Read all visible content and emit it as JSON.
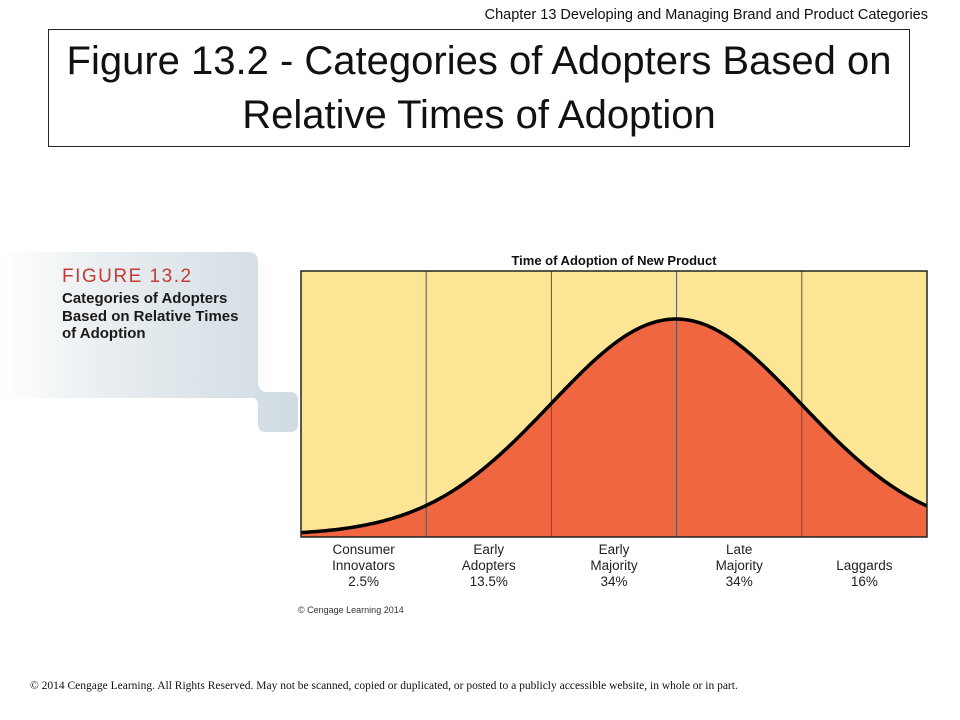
{
  "header": {
    "chapter": "Chapter 13 Developing and Managing Brand and Product Categories",
    "title": "Figure 13.2 - Categories of Adopters Based on Relative Times of Adoption"
  },
  "figure": {
    "label": "FIGURE 13.2",
    "caption": "Categories of Adopters Based on Relative Times of Adoption",
    "label_color": "#c53a33"
  },
  "chart_data": {
    "type": "area",
    "title": "Time of Adoption of New Product",
    "categories": [
      {
        "line1": "Consumer",
        "line2": "Innovators",
        "share": "2.5%"
      },
      {
        "line1": "Early",
        "line2": "Adopters",
        "share": "13.5%"
      },
      {
        "line1": "Early",
        "line2": "Majority",
        "share": "34%"
      },
      {
        "line1": "Late",
        "line2": "Majority",
        "share": "34%"
      },
      {
        "line1": "",
        "line2": "Laggards",
        "share": "16%"
      }
    ],
    "colors": {
      "background": "#fde596",
      "curve_fill": "#f06640",
      "curve_stroke": "#000000"
    },
    "credit": "© Cengage Learning 2014"
  },
  "footer": {
    "copyright": "© 2014 Cengage Learning.  All Rights Reserved.  May not be scanned, copied or duplicated, or posted to a publicly accessible website, in whole or in part."
  }
}
